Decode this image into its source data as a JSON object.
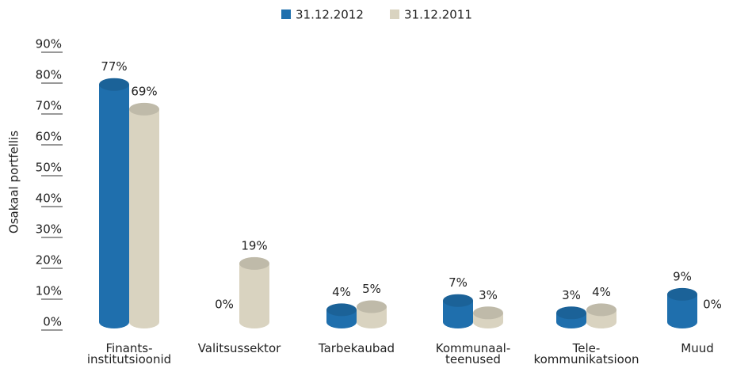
{
  "chart_data": {
    "type": "cylinder-bar",
    "y_label": "Osakaal portfellis",
    "categories": [
      "Finants-\ninstitutsioonid",
      "Valitsussektor",
      "Tarbekaubad",
      "Kommunaal-\nteenused",
      "Tele-\nkommunikatsioon",
      "Muud"
    ],
    "series": [
      {
        "name": "31.12.2012",
        "color": "#1f6fad",
        "values": [
          77,
          0,
          4,
          7,
          3,
          9
        ],
        "value_labels": [
          "77%",
          "0%",
          "4%",
          "7%",
          "3%",
          "9%"
        ]
      },
      {
        "name": "31.12.2011",
        "color": "#d9d3c0",
        "values": [
          69,
          19,
          5,
          3,
          4,
          0
        ],
        "value_labels": [
          "69%",
          "19%",
          "5%",
          "3%",
          "4%",
          "0%"
        ]
      }
    ],
    "ylim": [
      0,
      90
    ],
    "yticks": [
      {
        "value": 0,
        "label": "0%"
      },
      {
        "value": 10,
        "label": "10%"
      },
      {
        "value": 20,
        "label": "20%"
      },
      {
        "value": 30,
        "label": "30%"
      },
      {
        "value": 40,
        "label": "40%"
      },
      {
        "value": 50,
        "label": "50%"
      },
      {
        "value": 60,
        "label": "60%"
      },
      {
        "value": 70,
        "label": "70%"
      },
      {
        "value": 80,
        "label": "80%"
      },
      {
        "value": 90,
        "label": "90%"
      }
    ],
    "legend": "top"
  }
}
